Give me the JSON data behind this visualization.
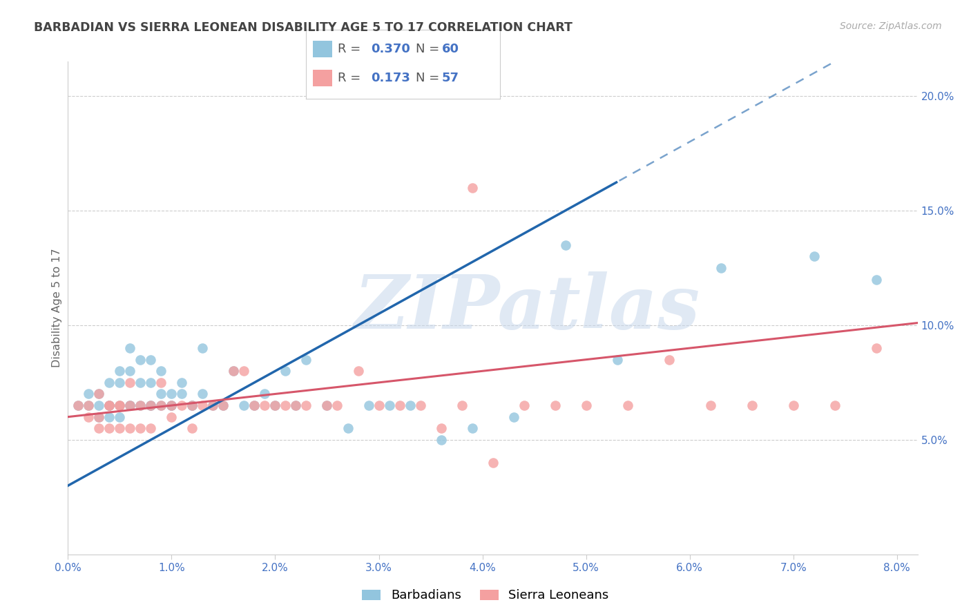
{
  "title": "BARBADIAN VS SIERRA LEONEAN DISABILITY AGE 5 TO 17 CORRELATION CHART",
  "source": "Source: ZipAtlas.com",
  "ylabel": "Disability Age 5 to 17",
  "xlim": [
    0.0,
    0.082
  ],
  "ylim": [
    0.0,
    0.215
  ],
  "xticks": [
    0.0,
    0.01,
    0.02,
    0.03,
    0.04,
    0.05,
    0.06,
    0.07,
    0.08
  ],
  "xtick_labels": [
    "0.0%",
    "1.0%",
    "2.0%",
    "3.0%",
    "4.0%",
    "5.0%",
    "6.0%",
    "7.0%",
    "8.0%"
  ],
  "yticks_right": [
    0.05,
    0.1,
    0.15,
    0.2
  ],
  "ytick_labels_right": [
    "5.0%",
    "10.0%",
    "15.0%",
    "20.0%"
  ],
  "legend_blue_r": "0.370",
  "legend_blue_n": "60",
  "legend_pink_r": "0.173",
  "legend_pink_n": "57",
  "blue_scatter_color": "#92c5de",
  "pink_scatter_color": "#f4a0a0",
  "blue_line_color": "#2166ac",
  "pink_line_color": "#d6566a",
  "grid_color": "#cccccc",
  "bg_color": "#ffffff",
  "watermark": "ZIPatlas",
  "title_color": "#444444",
  "axis_label_color": "#4472c4",
  "ylabel_color": "#666666",
  "blue_line_intercept": 0.03,
  "blue_line_slope": 2.5,
  "blue_line_solid_end": 0.053,
  "pink_line_intercept": 0.06,
  "pink_line_slope": 0.5,
  "blue_x": [
    0.001,
    0.002,
    0.002,
    0.003,
    0.003,
    0.003,
    0.004,
    0.004,
    0.004,
    0.004,
    0.005,
    0.005,
    0.005,
    0.005,
    0.006,
    0.006,
    0.006,
    0.006,
    0.007,
    0.007,
    0.007,
    0.008,
    0.008,
    0.008,
    0.008,
    0.009,
    0.009,
    0.009,
    0.01,
    0.01,
    0.01,
    0.011,
    0.011,
    0.012,
    0.012,
    0.013,
    0.013,
    0.014,
    0.015,
    0.016,
    0.017,
    0.018,
    0.019,
    0.02,
    0.021,
    0.022,
    0.023,
    0.025,
    0.027,
    0.029,
    0.031,
    0.033,
    0.036,
    0.039,
    0.043,
    0.048,
    0.053,
    0.063,
    0.072,
    0.078
  ],
  "blue_y": [
    0.065,
    0.07,
    0.065,
    0.07,
    0.065,
    0.06,
    0.075,
    0.065,
    0.065,
    0.06,
    0.08,
    0.075,
    0.065,
    0.06,
    0.09,
    0.08,
    0.065,
    0.065,
    0.085,
    0.075,
    0.065,
    0.085,
    0.075,
    0.065,
    0.065,
    0.08,
    0.07,
    0.065,
    0.07,
    0.065,
    0.065,
    0.075,
    0.07,
    0.065,
    0.065,
    0.09,
    0.07,
    0.065,
    0.065,
    0.08,
    0.065,
    0.065,
    0.07,
    0.065,
    0.08,
    0.065,
    0.085,
    0.065,
    0.055,
    0.065,
    0.065,
    0.065,
    0.05,
    0.055,
    0.06,
    0.135,
    0.085,
    0.125,
    0.13,
    0.12
  ],
  "pink_x": [
    0.001,
    0.002,
    0.002,
    0.003,
    0.003,
    0.003,
    0.004,
    0.004,
    0.004,
    0.005,
    0.005,
    0.005,
    0.006,
    0.006,
    0.006,
    0.007,
    0.007,
    0.008,
    0.008,
    0.009,
    0.009,
    0.01,
    0.01,
    0.011,
    0.012,
    0.012,
    0.013,
    0.014,
    0.015,
    0.016,
    0.017,
    0.018,
    0.019,
    0.02,
    0.021,
    0.022,
    0.023,
    0.025,
    0.026,
    0.028,
    0.03,
    0.032,
    0.034,
    0.036,
    0.038,
    0.041,
    0.044,
    0.047,
    0.05,
    0.054,
    0.058,
    0.062,
    0.066,
    0.07,
    0.074,
    0.039,
    0.078
  ],
  "pink_y": [
    0.065,
    0.065,
    0.06,
    0.07,
    0.06,
    0.055,
    0.065,
    0.065,
    0.055,
    0.065,
    0.065,
    0.055,
    0.075,
    0.065,
    0.055,
    0.065,
    0.055,
    0.065,
    0.055,
    0.065,
    0.075,
    0.065,
    0.06,
    0.065,
    0.065,
    0.055,
    0.065,
    0.065,
    0.065,
    0.08,
    0.08,
    0.065,
    0.065,
    0.065,
    0.065,
    0.065,
    0.065,
    0.065,
    0.065,
    0.08,
    0.065,
    0.065,
    0.065,
    0.055,
    0.065,
    0.04,
    0.065,
    0.065,
    0.065,
    0.065,
    0.085,
    0.065,
    0.065,
    0.065,
    0.065,
    0.16,
    0.09
  ]
}
